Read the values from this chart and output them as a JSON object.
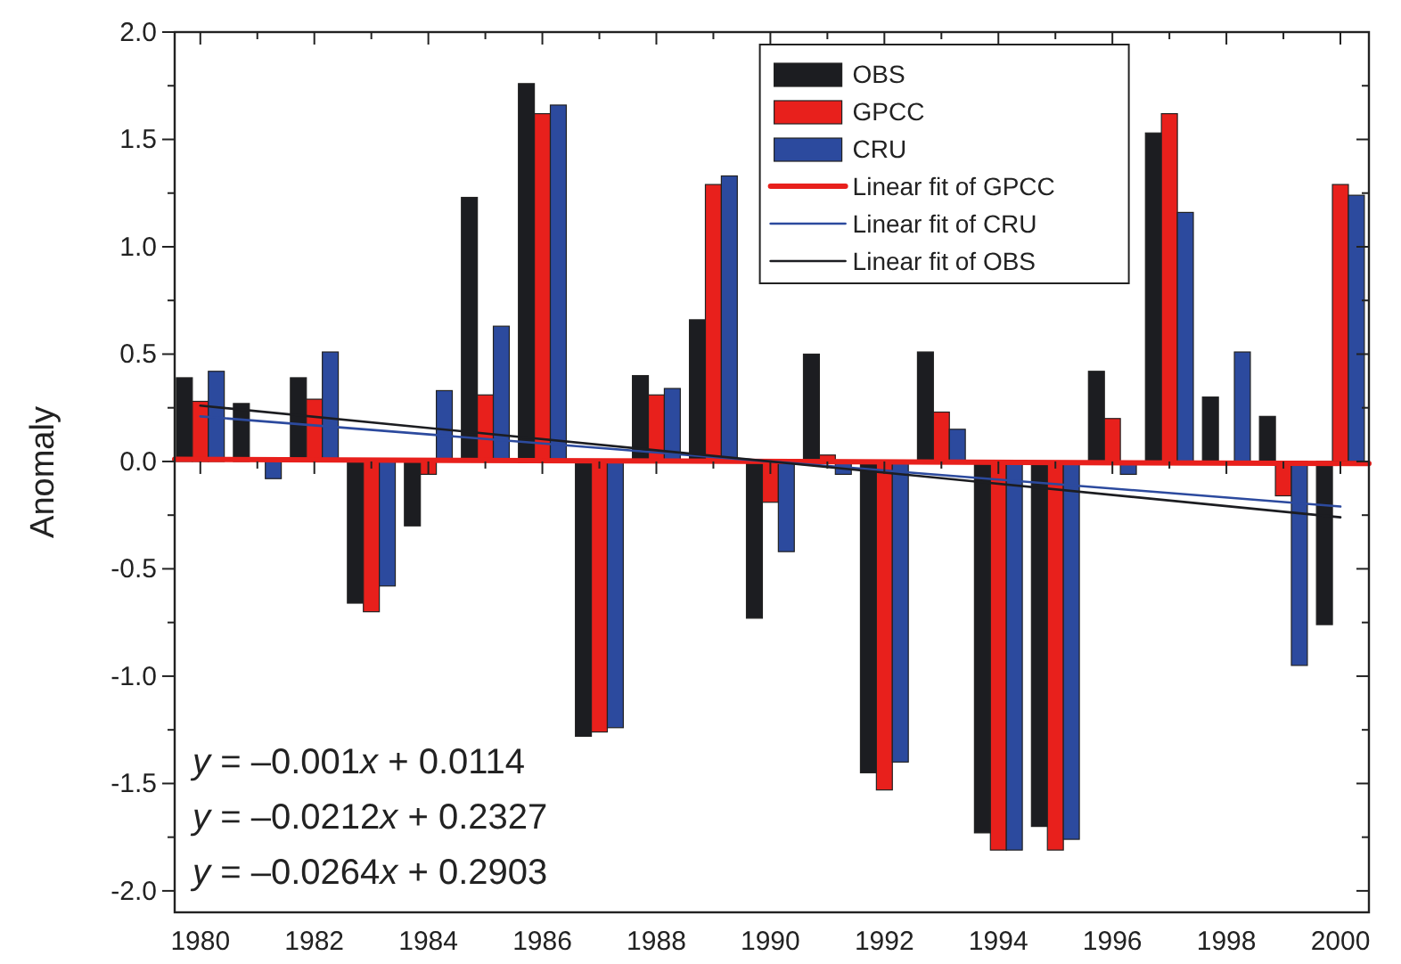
{
  "chart_data": {
    "type": "bar",
    "ylabel": "Anomaly",
    "x": [
      1980,
      1981,
      1982,
      1983,
      1984,
      1985,
      1986,
      1987,
      1988,
      1989,
      1990,
      1991,
      1992,
      1993,
      1994,
      1995,
      1996,
      1997,
      1998,
      1999,
      2000
    ],
    "series": [
      {
        "name": "OBS",
        "color": "#1c1d21",
        "values": [
          0.39,
          0.27,
          0.39,
          -0.66,
          -0.3,
          1.23,
          1.76,
          -1.28,
          0.4,
          0.66,
          -0.73,
          0.5,
          -1.45,
          0.51,
          -1.73,
          -1.7,
          0.42,
          1.53,
          0.3,
          0.21,
          -0.76
        ]
      },
      {
        "name": "GPCC",
        "color": "#e8201c",
        "values": [
          0.28,
          0,
          0.29,
          -0.7,
          -0.06,
          0.31,
          1.62,
          -1.26,
          0.31,
          1.29,
          -0.19,
          0.03,
          -1.53,
          0.23,
          -1.81,
          -1.81,
          0.2,
          1.62,
          -0.01,
          -0.16,
          1.29
        ]
      },
      {
        "name": "CRU",
        "color": "#2c4a9e",
        "values": [
          0.42,
          -0.08,
          0.51,
          -0.58,
          0.33,
          0.63,
          1.66,
          -1.24,
          0.34,
          1.33,
          -0.42,
          -0.06,
          -1.4,
          0.15,
          -1.81,
          -1.76,
          -0.06,
          1.16,
          0.51,
          -0.95,
          1.24
        ]
      },
      {
        "name": "Linear fit of GPCC",
        "type": "line",
        "color": "#e8201c",
        "x": [
          1979.55,
          2000.5
        ],
        "values": [
          0.01,
          -0.01
        ]
      },
      {
        "name": "Linear fit of CRU",
        "type": "line",
        "color": "#2c4a9e",
        "x": [
          1980,
          2000
        ],
        "values": [
          0.21,
          -0.21
        ]
      },
      {
        "name": "Linear fit of OBS",
        "type": "line",
        "color": "#1c1d21",
        "x": [
          1980,
          2000
        ],
        "values": [
          0.26,
          -0.26
        ]
      }
    ],
    "xlim": [
      1979.55,
      2000.5
    ],
    "xticks": [
      1980,
      {
        "value": 1981,
        "label": null
      },
      1982,
      {
        "value": 1983,
        "label": null
      },
      1984,
      {
        "value": 1985,
        "label": null
      },
      1986,
      {
        "value": 1987,
        "label": null
      },
      1988,
      {
        "value": 1989,
        "label": null
      },
      1990,
      {
        "value": 1991,
        "label": null
      },
      1992,
      {
        "value": 1993,
        "label": null
      },
      1994,
      {
        "value": 1995,
        "label": null
      },
      1996,
      {
        "value": 1997,
        "label": null
      },
      1998,
      {
        "value": 1999,
        "label": null
      },
      2000
    ],
    "ylim": [
      -2.1,
      2.0
    ],
    "yticks": [
      {
        "value": -2,
        "label": "-2.0"
      },
      {
        "value": -1.75,
        "label": null
      },
      {
        "value": -1.5,
        "label": "-1.5"
      },
      {
        "value": -1.25,
        "label": null
      },
      {
        "value": -1,
        "label": "-1.0"
      },
      {
        "value": -0.75,
        "label": null
      },
      {
        "value": -0.5,
        "label": "-0.5"
      },
      {
        "value": -0.25,
        "label": null
      },
      {
        "value": 0,
        "label": "0.0"
      },
      {
        "value": 0.25,
        "label": null
      },
      {
        "value": 0.5,
        "label": "0.5"
      },
      {
        "value": 0.75,
        "label": null
      },
      {
        "value": 1,
        "label": "1.0"
      },
      {
        "value": 1.25,
        "label": null
      },
      {
        "value": 1.5,
        "label": "1.5"
      },
      {
        "value": 1.75,
        "label": null
      },
      {
        "value": 2,
        "label": "2.0"
      }
    ],
    "legend": "top right",
    "annotations": [
      "y = –0.001x + 0.0114",
      "y = –0.0212x + 0.2327",
      "y = –0.0264x + 0.2903"
    ]
  }
}
